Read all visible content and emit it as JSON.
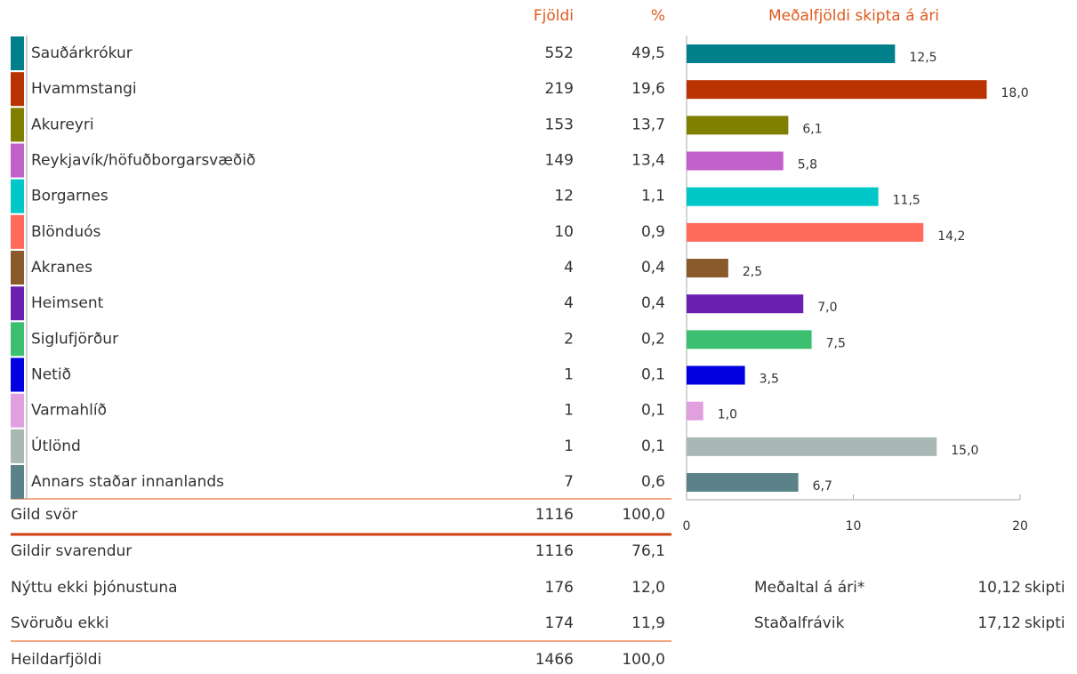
{
  "table": {
    "headers": [
      "Fjöldi",
      "%"
    ],
    "rows": [
      {
        "count": "552",
        "percent": "49,5"
      },
      {
        "count": "219",
        "percent": "19,6"
      },
      {
        "count": "153",
        "percent": "13,7"
      },
      {
        "count": "149",
        "percent": "13,4"
      },
      {
        "count": "12",
        "percent": "1,1"
      },
      {
        "count": "10",
        "percent": "0,9"
      },
      {
        "count": "4",
        "percent": "0,4"
      },
      {
        "count": "4",
        "percent": "0,4"
      },
      {
        "count": "2",
        "percent": "0,2"
      },
      {
        "count": "1",
        "percent": "0,1"
      },
      {
        "count": "1",
        "percent": "0,1"
      },
      {
        "count": "1",
        "percent": "0,1"
      },
      {
        "count": "7",
        "percent": "0,6"
      }
    ],
    "summary_rows": [
      {
        "label": "Gild svör",
        "count": "1116",
        "percent": "100,0"
      },
      {
        "label": "Gildir svarendur",
        "count": "1116",
        "percent": "76,1"
      },
      {
        "label": "Nýttu ekki þjónustuna",
        "count": "176",
        "percent": "12,0"
      },
      {
        "label": "Svöruðu ekki",
        "count": "174",
        "percent": "11,9"
      },
      {
        "label": "Heildarfjöldi",
        "count": "1466",
        "percent": "100,0"
      }
    ]
  },
  "chart_data": {
    "type": "bar",
    "orientation": "horizontal",
    "title": "Meðalfjöldi skipta á ári",
    "categories": [
      "Sauðárkrókur",
      "Hvammstangi",
      "Akureyri",
      "Reykjavík/höfuðborgarsvæðið",
      "Borgarnes",
      "Blönduós",
      "Akranes",
      "Heimsent",
      "Siglufjörður",
      "Netið",
      "Varmahlíð",
      "Útlönd",
      "Annars staðar innanlands"
    ],
    "values": [
      12.5,
      18.0,
      6.1,
      5.8,
      11.5,
      14.2,
      2.5,
      7.0,
      7.5,
      3.5,
      1.0,
      15.0,
      6.7
    ],
    "value_labels": [
      "12,5",
      "18,0",
      "6,1",
      "5,8",
      "11,5",
      "14,2",
      "2,5",
      "7,0",
      "7,5",
      "3,5",
      "1,0",
      "15,0",
      "6,7"
    ],
    "colors": [
      "#00808a",
      "#b83300",
      "#808000",
      "#c060c8",
      "#00c8c8",
      "#ff6a5a",
      "#8b5a2b",
      "#6a1fb0",
      "#3cc070",
      "#0000e0",
      "#e0a0e0",
      "#a9b8b4",
      "#5a8288"
    ],
    "xlim": [
      0,
      20
    ],
    "xticks": [
      0,
      10,
      20
    ]
  },
  "stats": [
    {
      "label": "Meðaltal á ári*",
      "value": "10,12",
      "unit": "skipti"
    },
    {
      "label": "Staðalfrávik",
      "value": "17,12",
      "unit": "skipti"
    }
  ]
}
